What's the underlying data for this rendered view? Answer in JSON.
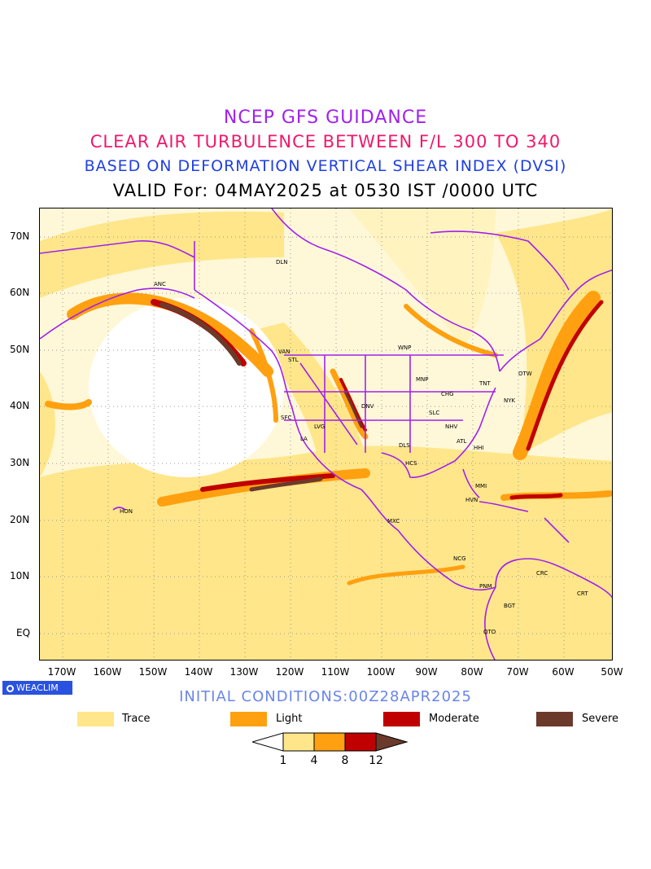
{
  "titles": {
    "line1": "NCEP GFS GUIDANCE",
    "line2": "CLEAR AIR TURBULENCE BETWEEN F/L 300 TO 340",
    "line3": "BASED ON DEFORMATION VERTICAL SHEAR INDEX (DVSI)",
    "line4": "VALID For: 04MAY2025 at 0530 IST /0000 UTC"
  },
  "axes": {
    "lat_labels": [
      "70N",
      "60N",
      "50N",
      "40N",
      "30N",
      "20N",
      "10N",
      "EQ"
    ],
    "lon_labels": [
      "170W",
      "160W",
      "150W",
      "140W",
      "130W",
      "120W",
      "110W",
      "100W",
      "90W",
      "80W",
      "70W",
      "60W",
      "50W"
    ]
  },
  "cities": [
    "ANC",
    "DLN",
    "VAN",
    "STL",
    "WNP",
    "MNP",
    "OTW",
    "TNT",
    "NYK",
    "CHG",
    "DNV",
    "SLC",
    "SFC",
    "LVG",
    "LA",
    "NHV",
    "ATL",
    "HHI",
    "DLS",
    "HCS",
    "MMI",
    "HVN",
    "MXC",
    "HON",
    "NCG",
    "CRC",
    "CRT",
    "PNM",
    "BGT",
    "QTO"
  ],
  "logo": "WEACLIM",
  "initial": "INITIAL CONDITIONS:00Z28APR2025",
  "legend": [
    {
      "label": "Trace",
      "color": "#ffe68a"
    },
    {
      "label": "Light",
      "color": "#ffa010"
    },
    {
      "label": "Moderate",
      "color": "#c00000"
    },
    {
      "label": "Severe",
      "color": "#6b3a2a"
    }
  ],
  "colorbar": {
    "ticks": [
      "1",
      "4",
      "8",
      "12"
    ],
    "colors": [
      "#ffe68a",
      "#ffa010",
      "#c00000",
      "#6b3a2a"
    ]
  },
  "colors": {
    "border": "#a020f0",
    "trace": "#ffe68a",
    "light": "#ffa010",
    "moderate": "#c00000",
    "severe": "#6b3a2a"
  }
}
